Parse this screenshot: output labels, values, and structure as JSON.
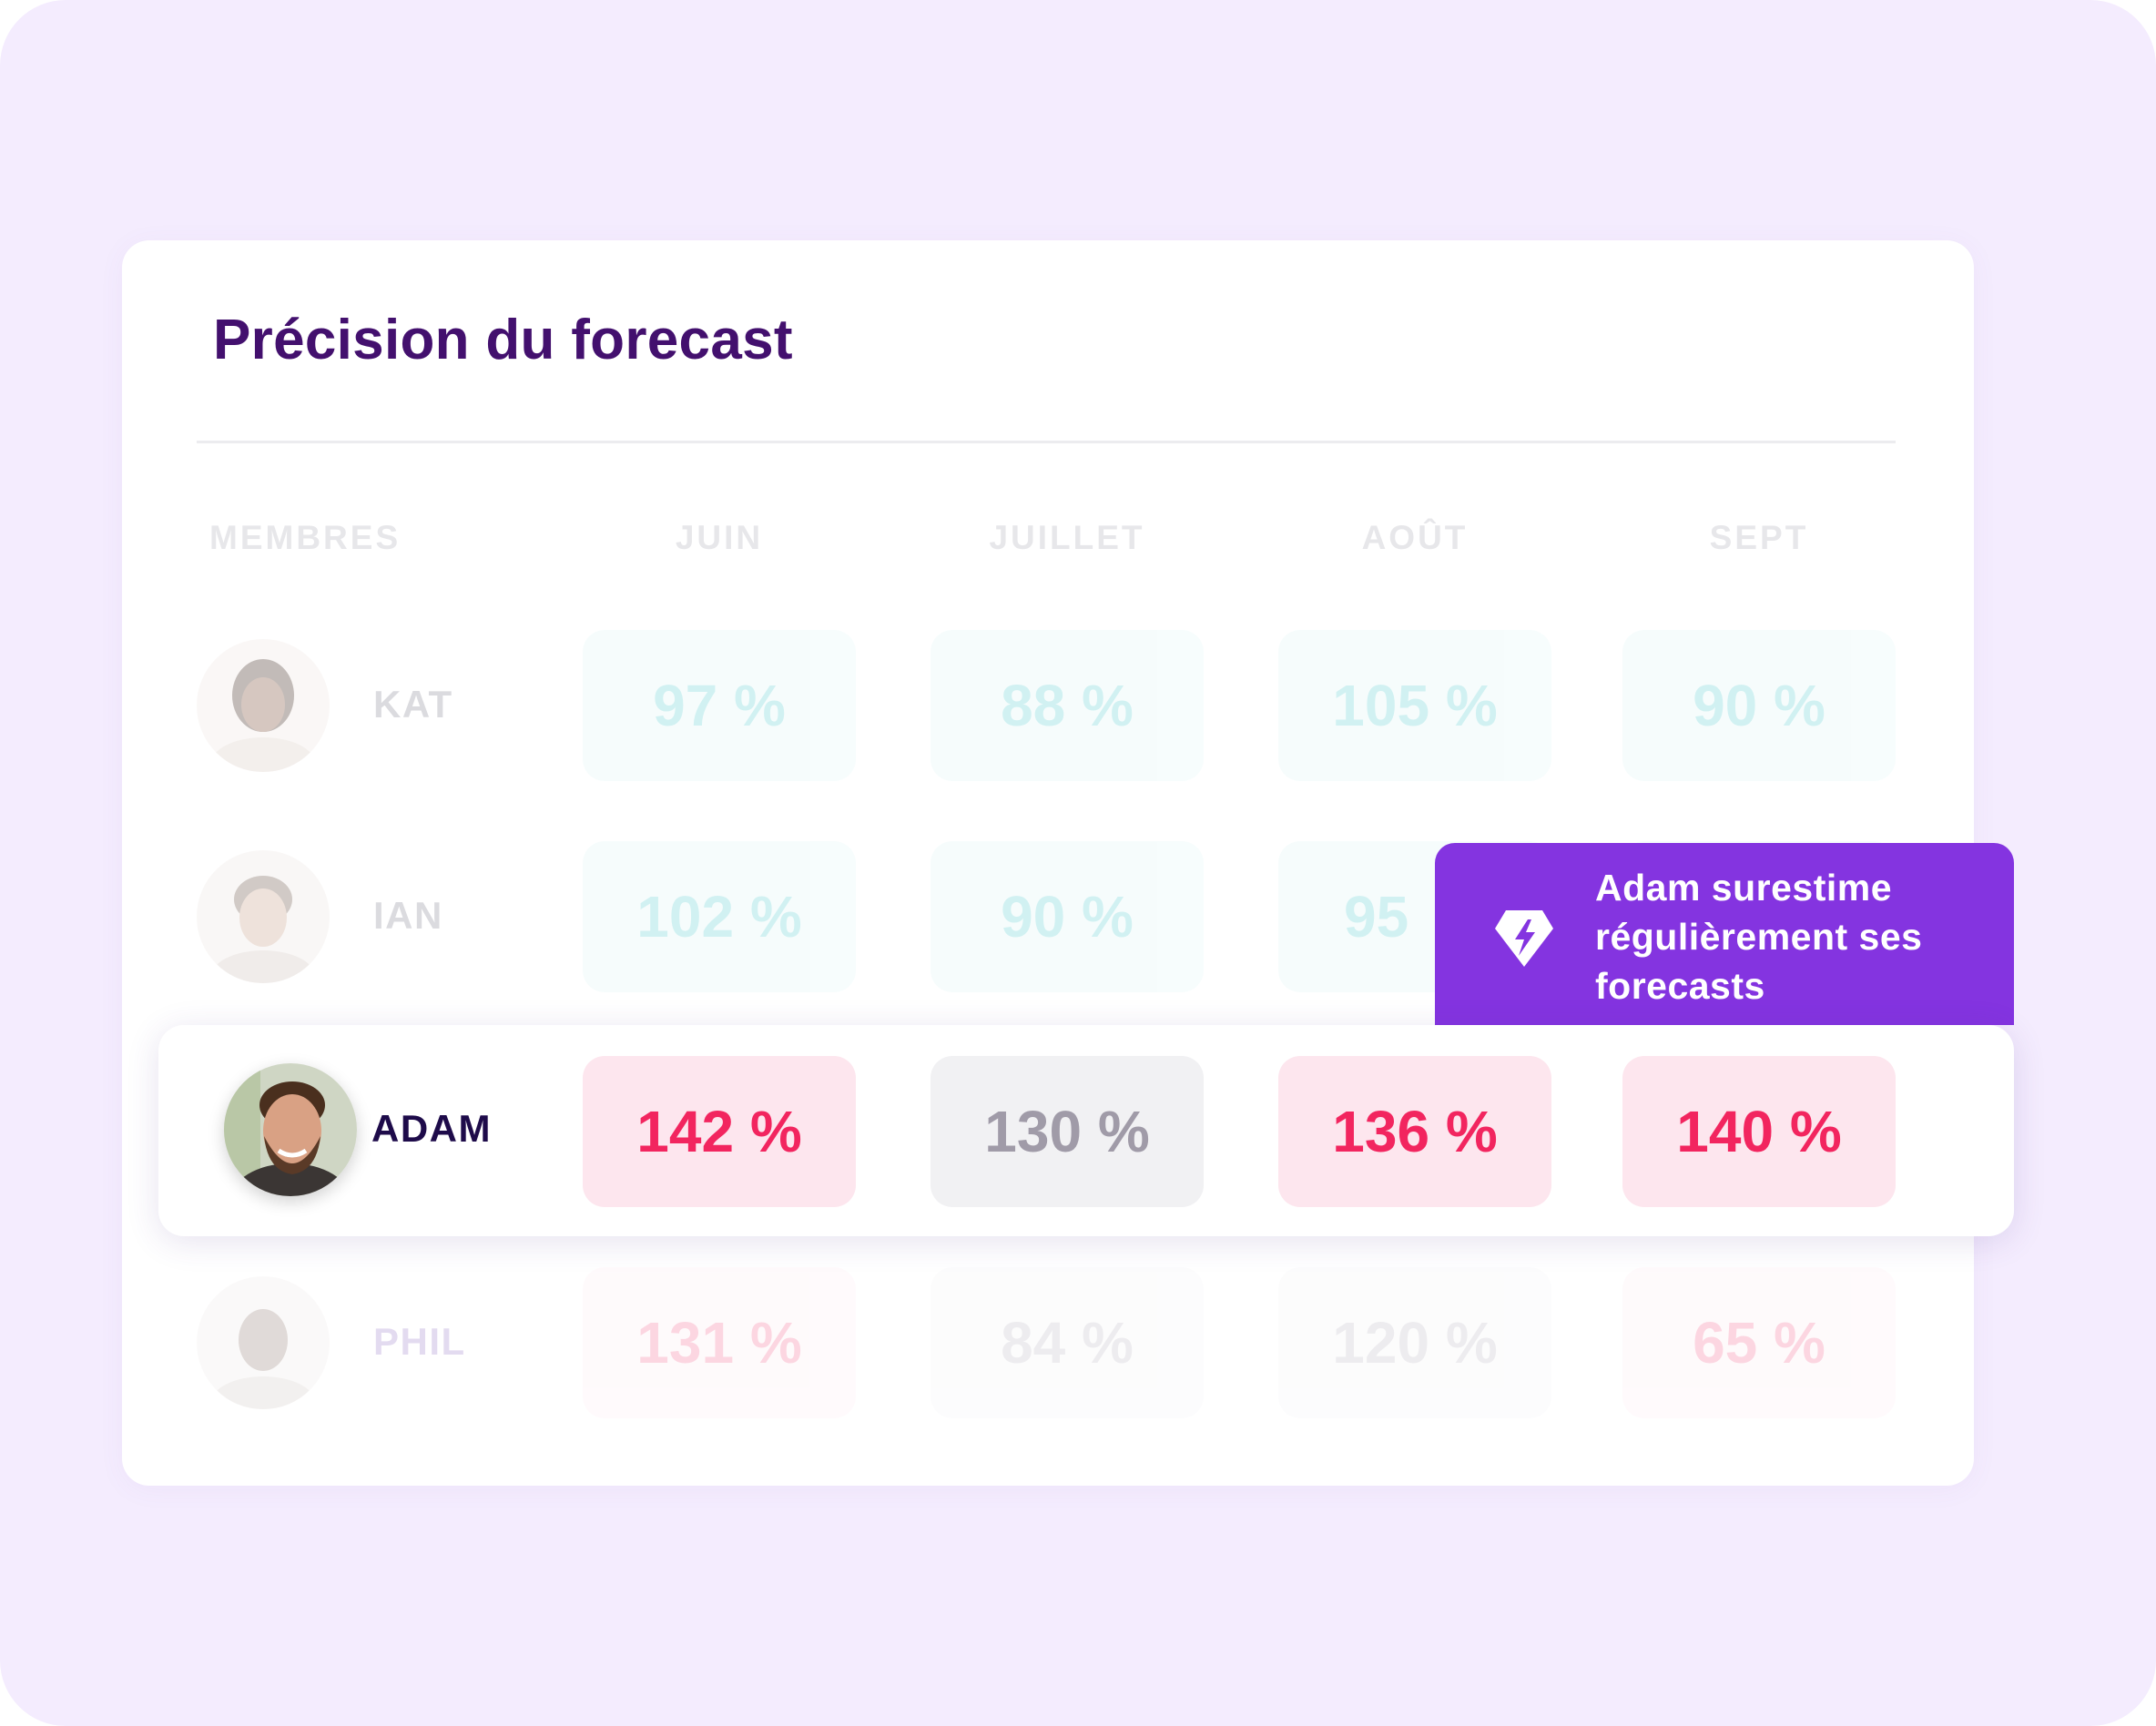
{
  "card": {
    "title": "Précision du forecast"
  },
  "columns": {
    "members": "MEMBRES",
    "months": [
      "JUIN",
      "JUILLET",
      "AOÛT",
      "SEPT"
    ]
  },
  "rows": [
    {
      "name": "KAT",
      "values": [
        "97 %",
        "88 %",
        "105 %",
        "90 %"
      ],
      "tones": [
        "teal",
        "teal",
        "teal",
        "teal"
      ]
    },
    {
      "name": "IAN",
      "values": [
        "102 %",
        "90 %",
        "95",
        ""
      ],
      "tones": [
        "teal",
        "teal",
        "teal",
        "teal"
      ]
    },
    {
      "name": "ADAM",
      "values": [
        "142 %",
        "130 %",
        "136 %",
        "140 %"
      ],
      "tones": [
        "pink",
        "gray",
        "pink",
        "pink"
      ]
    },
    {
      "name": "PHIL",
      "values": [
        "131 %",
        "84 %",
        "120 %",
        "65 %"
      ],
      "tones": [
        "pink",
        "gray",
        "gray",
        "pink"
      ]
    }
  ],
  "callout": {
    "icon": "lightning-diamond-icon",
    "lines": [
      "Adam surestime",
      "régulièrement ses",
      "forecasts"
    ]
  },
  "colors": {
    "background": "#f4ecfe",
    "title": "#43106e",
    "callout": "#8434e0",
    "over_forecast": "#f2255f",
    "on_target": "#6ad3d6",
    "neutral": "#a09ba8"
  }
}
